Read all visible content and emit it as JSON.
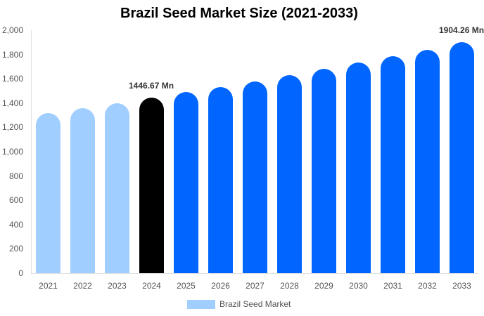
{
  "chart_data": {
    "type": "bar",
    "title": "Brazil Seed Market Size (2021-2033)",
    "xlabel": "",
    "ylabel": "",
    "ylim": [
      0,
      2000
    ],
    "yticks": [
      "0",
      "200",
      "400",
      "600",
      "800",
      "1,000",
      "1,200",
      "1,400",
      "1,600",
      "1,800",
      "2,000"
    ],
    "categories": [
      "2021",
      "2022",
      "2023",
      "2024",
      "2025",
      "2026",
      "2027",
      "2028",
      "2029",
      "2030",
      "2031",
      "2032",
      "2033"
    ],
    "series": [
      {
        "name": "Brazil Seed Market",
        "values": [
          1318,
          1358,
          1399,
          1446.67,
          1491,
          1532,
          1578,
          1630,
          1682,
          1734,
          1786,
          1838,
          1904.26
        ]
      }
    ],
    "bar_colors": [
      "#a0ceff",
      "#a0ceff",
      "#a0ceff",
      "#000000",
      "#0066ff",
      "#0066ff",
      "#0066ff",
      "#0066ff",
      "#0066ff",
      "#0066ff",
      "#0066ff",
      "#0066ff",
      "#0066ff"
    ],
    "annotations": [
      {
        "category": "2024",
        "text": "1446.67 Mn"
      },
      {
        "category": "2033",
        "text": "1904.26 Mn"
      }
    ],
    "legend": {
      "position": "bottom",
      "entries": [
        "Brazil Seed Market"
      ]
    },
    "grid": false
  }
}
